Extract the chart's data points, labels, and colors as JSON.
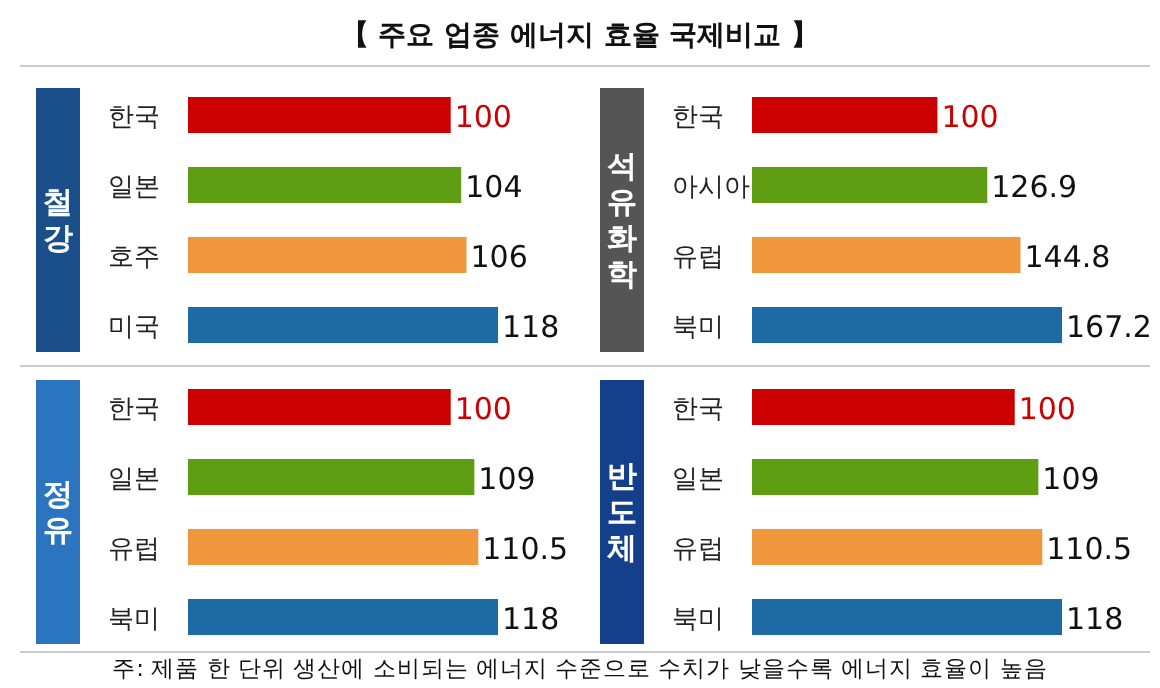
{
  "chart_data": [
    {
      "type": "bar",
      "orientation": "horizontal",
      "title": "철강",
      "annotations": [
        "【 주요 업종 에너지 효율 국제비교 】"
      ],
      "categories": [
        "한국",
        "일본",
        "호주",
        "미국"
      ],
      "values": [
        100,
        104,
        106,
        118
      ],
      "colors": [
        "#cc0000",
        "#5f9e12",
        "#f0963c",
        "#1d6aa5"
      ],
      "data_labels": true
    },
    {
      "type": "bar",
      "orientation": "horizontal",
      "title": "석유화학",
      "categories": [
        "한국",
        "아시아",
        "유럽",
        "북미"
      ],
      "values": [
        100,
        126.9,
        144.8,
        167.2
      ],
      "colors": [
        "#cc0000",
        "#5f9e12",
        "#f0963c",
        "#1d6aa5"
      ],
      "data_labels": true
    },
    {
      "type": "bar",
      "orientation": "horizontal",
      "title": "정유",
      "categories": [
        "한국",
        "일본",
        "유럽",
        "북미"
      ],
      "values": [
        100,
        109,
        110.5,
        118
      ],
      "colors": [
        "#cc0000",
        "#5f9e12",
        "#f0963c",
        "#1d6aa5"
      ],
      "data_labels": true
    },
    {
      "type": "bar",
      "orientation": "horizontal",
      "title": "반도체",
      "annotations": [
        "주: 제품 한 단위 생산에 소비되는 에너지 수준으로 수치가 낮을수록 에너지 효율이 높음"
      ],
      "categories": [
        "한국",
        "일본",
        "유럽",
        "북미"
      ],
      "values": [
        100,
        109,
        110.5,
        118
      ],
      "colors": [
        "#cc0000",
        "#5f9e12",
        "#f0963c",
        "#1d6aa5"
      ],
      "data_labels": true
    }
  ]
}
